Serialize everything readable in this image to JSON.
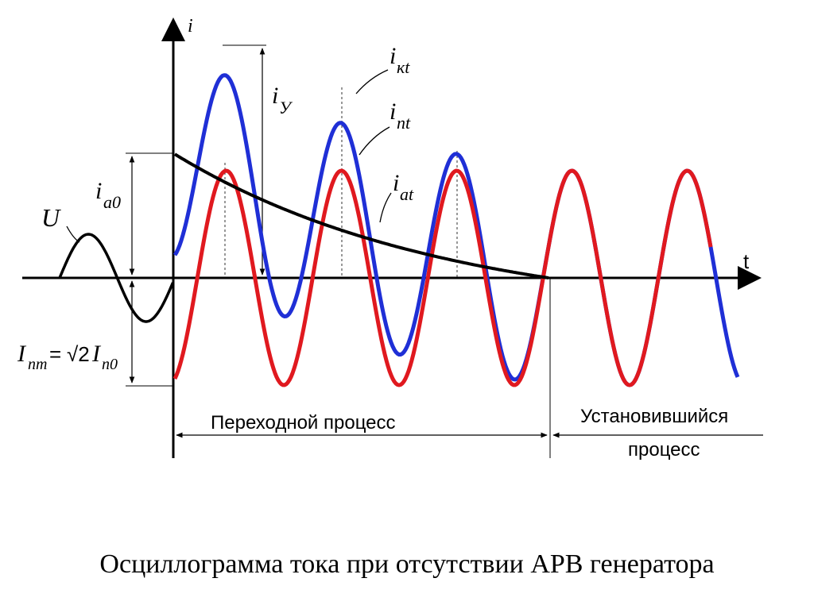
{
  "labels": {
    "axis_i": "i",
    "axis_t": "t",
    "u": "U",
    "ia0_main": "i",
    "ia0_sub": "a0",
    "iy_main": "i",
    "iy_sub": "У",
    "ikt_main": "i",
    "ikt_sub": "кt",
    "int_main": "i",
    "int_sub": "nt",
    "iat_main": "i",
    "iat_sub": "at",
    "inm_main": "I",
    "inm_sub": "nm",
    "inm_eq": "=",
    "inm_sqrt": "√2",
    "inm_i": "I",
    "inm_sub2": "n0"
  },
  "regions": {
    "transient": "Переходной процесс",
    "steady_line1": "Установившийся",
    "steady_line2": "процесс"
  },
  "caption": "Осциллограмма тока при отсутствии АРВ генератора",
  "colors": {
    "total_current": "#1f2fd6",
    "periodic_current": "#e0191f",
    "aperiodic_current": "#000000",
    "voltage": "#000000"
  }
}
